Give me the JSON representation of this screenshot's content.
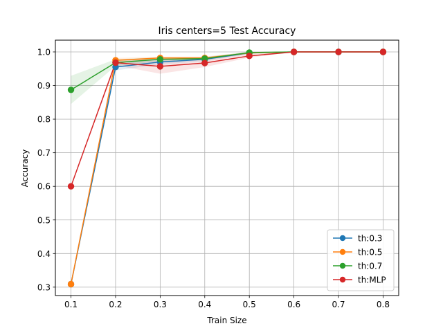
{
  "chart_data": {
    "type": "line",
    "title": "Iris  centers=5 Test Accuracy",
    "xlabel": "Train Size",
    "ylabel": "Accuracy",
    "x": [
      0.1,
      0.2,
      0.3,
      0.4,
      0.5,
      0.6,
      0.7,
      0.8
    ],
    "x_tick_labels": [
      "0.1",
      "0.2",
      "0.3",
      "0.4",
      "0.5",
      "0.6",
      "0.7",
      "0.8"
    ],
    "y_ticks": [
      0.3,
      0.4,
      0.5,
      0.6,
      0.7,
      0.8,
      0.9,
      1.0
    ],
    "y_tick_labels": [
      "0.3",
      "0.4",
      "0.5",
      "0.6",
      "0.7",
      "0.8",
      "0.9",
      "1.0"
    ],
    "xlim": [
      0.065,
      0.835
    ],
    "ylim": [
      0.275,
      1.035
    ],
    "grid": true,
    "legend_position": "lower-right",
    "series": [
      {
        "name": "th:0.3",
        "color": "#1f77b4",
        "values": [
          0.309,
          0.955,
          0.97,
          0.978,
          0.997,
          1.0,
          1.0,
          1.0
        ],
        "band_lower": [
          0.309,
          0.945,
          0.963,
          0.972,
          0.994,
          1.0,
          1.0,
          1.0
        ],
        "band_upper": [
          0.309,
          0.965,
          0.977,
          0.984,
          1.0,
          1.0,
          1.0,
          1.0
        ]
      },
      {
        "name": "th:0.5",
        "color": "#ff7f0e",
        "values": [
          0.309,
          0.975,
          0.982,
          0.982,
          0.997,
          1.0,
          1.0,
          1.0
        ],
        "band_lower": [
          0.309,
          0.968,
          0.978,
          0.978,
          0.994,
          1.0,
          1.0,
          1.0
        ],
        "band_upper": [
          0.309,
          0.982,
          0.986,
          0.986,
          1.0,
          1.0,
          1.0,
          1.0
        ]
      },
      {
        "name": "th:0.7",
        "color": "#2ca02c",
        "values": [
          0.887,
          0.968,
          0.978,
          0.98,
          0.998,
          1.0,
          1.0,
          1.0
        ],
        "band_lower": [
          0.845,
          0.958,
          0.972,
          0.975,
          0.995,
          1.0,
          1.0,
          1.0
        ],
        "band_upper": [
          0.929,
          0.978,
          0.984,
          0.985,
          1.0,
          1.0,
          1.0,
          1.0
        ]
      },
      {
        "name": "th:MLP",
        "color": "#d62728",
        "values": [
          0.6,
          0.968,
          0.957,
          0.967,
          0.988,
          1.0,
          1.0,
          1.0
        ],
        "band_lower": [
          0.6,
          0.96,
          0.935,
          0.955,
          0.983,
          1.0,
          1.0,
          1.0
        ],
        "band_upper": [
          0.6,
          0.976,
          0.979,
          0.979,
          0.993,
          1.0,
          1.0,
          1.0
        ]
      }
    ]
  }
}
